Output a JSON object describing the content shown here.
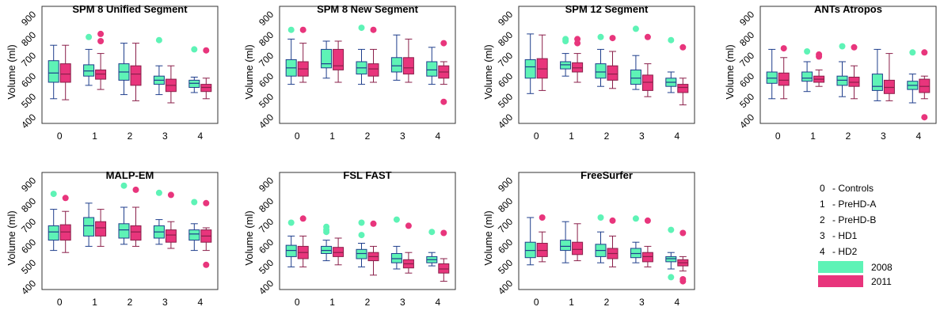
{
  "chart_data": [
    {
      "type": "box",
      "title": "SPM 8 Unified Segment",
      "ylabel": "Volume (ml)",
      "ylim": [
        400,
        900
      ],
      "yticks": [
        "400",
        "500",
        "600",
        "700",
        "800",
        "900"
      ],
      "categories": [
        "0",
        "1",
        "2",
        "3",
        "4"
      ],
      "series": [
        {
          "name": "2008",
          "boxes": [
            {
              "min": 520,
              "q1": 600,
              "median": 645,
              "q3": 705,
              "max": 780,
              "outliers": []
            },
            {
              "min": 585,
              "q1": 630,
              "median": 655,
              "q3": 685,
              "max": 760,
              "outliers": [
                820
              ]
            },
            {
              "min": 540,
              "q1": 610,
              "median": 650,
              "q3": 690,
              "max": 790,
              "outliers": []
            },
            {
              "min": 540,
              "q1": 590,
              "median": 610,
              "q3": 630,
              "max": 680,
              "outliers": [
                805
              ]
            },
            {
              "min": 550,
              "q1": 575,
              "median": 595,
              "q3": 610,
              "max": 625,
              "outliers": [
                760
              ]
            }
          ]
        },
        {
          "name": "2011",
          "boxes": [
            {
              "min": 515,
              "q1": 600,
              "median": 640,
              "q3": 690,
              "max": 780,
              "outliers": []
            },
            {
              "min": 565,
              "q1": 615,
              "median": 640,
              "q3": 660,
              "max": 740,
              "outliers": [
                835,
                800
              ]
            },
            {
              "min": 510,
              "q1": 585,
              "median": 640,
              "q3": 680,
              "max": 790,
              "outliers": []
            },
            {
              "min": 500,
              "q1": 555,
              "median": 585,
              "q3": 615,
              "max": 680,
              "outliers": []
            },
            {
              "min": 520,
              "q1": 555,
              "median": 575,
              "q3": 590,
              "max": 620,
              "outliers": [
                755
              ]
            }
          ]
        }
      ]
    },
    {
      "type": "box",
      "title": "SPM 8 New Segment",
      "ylabel": "Volume (ml)",
      "ylim": [
        400,
        900
      ],
      "yticks": [
        "400",
        "500",
        "600",
        "700",
        "800",
        "900"
      ],
      "categories": [
        "0",
        "1",
        "2",
        "3",
        "4"
      ],
      "series": [
        {
          "name": "2008",
          "boxes": [
            {
              "min": 590,
              "q1": 630,
              "median": 670,
              "q3": 710,
              "max": 810,
              "outliers": [
                855
              ]
            },
            {
              "min": 620,
              "q1": 670,
              "median": 690,
              "q3": 760,
              "max": 800,
              "outliers": []
            },
            {
              "min": 590,
              "q1": 640,
              "median": 670,
              "q3": 700,
              "max": 760,
              "outliers": [
                865
              ]
            },
            {
              "min": 610,
              "q1": 650,
              "median": 680,
              "q3": 720,
              "max": 830,
              "outliers": []
            },
            {
              "min": 590,
              "q1": 630,
              "median": 660,
              "q3": 700,
              "max": 770,
              "outliers": []
            }
          ]
        },
        {
          "name": "2011",
          "boxes": [
            {
              "min": 600,
              "q1": 630,
              "median": 665,
              "q3": 700,
              "max": 790,
              "outliers": [
                855
              ]
            },
            {
              "min": 600,
              "q1": 660,
              "median": 680,
              "q3": 760,
              "max": 800,
              "outliers": []
            },
            {
              "min": 600,
              "q1": 630,
              "median": 665,
              "q3": 690,
              "max": 760,
              "outliers": [
                855
              ]
            },
            {
              "min": 600,
              "q1": 640,
              "median": 670,
              "q3": 720,
              "max": 810,
              "outliers": []
            },
            {
              "min": 590,
              "q1": 620,
              "median": 650,
              "q3": 680,
              "max": 700,
              "outliers": [
                790,
                505
              ]
            }
          ]
        }
      ]
    },
    {
      "type": "box",
      "title": "SPM 12 Segment",
      "ylabel": "Volume (ml)",
      "ylim": [
        400,
        900
      ],
      "yticks": [
        "400",
        "500",
        "600",
        "700",
        "800",
        "900"
      ],
      "categories": [
        "0",
        "1",
        "2",
        "3",
        "4"
      ],
      "series": [
        {
          "name": "2008",
          "boxes": [
            {
              "min": 545,
              "q1": 620,
              "median": 675,
              "q3": 710,
              "max": 835,
              "outliers": []
            },
            {
              "min": 630,
              "q1": 665,
              "median": 685,
              "q3": 700,
              "max": 740,
              "outliers": [
                810,
                800
              ]
            },
            {
              "min": 580,
              "q1": 620,
              "median": 650,
              "q3": 690,
              "max": 760,
              "outliers": [
                820
              ]
            },
            {
              "min": 565,
              "q1": 590,
              "median": 620,
              "q3": 660,
              "max": 730,
              "outliers": [
                860
              ]
            },
            {
              "min": 550,
              "q1": 580,
              "median": 600,
              "q3": 620,
              "max": 650,
              "outliers": [
                805
              ]
            }
          ]
        },
        {
          "name": "2011",
          "boxes": [
            {
              "min": 560,
              "q1": 620,
              "median": 665,
              "q3": 715,
              "max": 830,
              "outliers": []
            },
            {
              "min": 600,
              "q1": 650,
              "median": 670,
              "q3": 695,
              "max": 740,
              "outliers": [
                810,
                790
              ]
            },
            {
              "min": 570,
              "q1": 610,
              "median": 640,
              "q3": 680,
              "max": 750,
              "outliers": [
                815
              ]
            },
            {
              "min": 530,
              "q1": 560,
              "median": 600,
              "q3": 635,
              "max": 690,
              "outliers": [
                820
              ]
            },
            {
              "min": 490,
              "q1": 550,
              "median": 575,
              "q3": 590,
              "max": 620,
              "outliers": [
                770
              ]
            }
          ]
        }
      ]
    },
    {
      "type": "box",
      "title": "ANTs Atropos",
      "ylabel": "Volume (ml)",
      "ylim": [
        400,
        900
      ],
      "yticks": [
        "400",
        "500",
        "600",
        "700",
        "800",
        "900"
      ],
      "categories": [
        "0",
        "1",
        "2",
        "3",
        "4"
      ],
      "series": [
        {
          "name": "2008",
          "boxes": [
            {
              "min": 520,
              "q1": 595,
              "median": 620,
              "q3": 650,
              "max": 760,
              "outliers": []
            },
            {
              "min": 555,
              "q1": 605,
              "median": 620,
              "q3": 650,
              "max": 700,
              "outliers": [
                750
              ]
            },
            {
              "min": 530,
              "q1": 585,
              "median": 610,
              "q3": 630,
              "max": 700,
              "outliers": [
                775
              ]
            },
            {
              "min": 510,
              "q1": 560,
              "median": 580,
              "q3": 640,
              "max": 760,
              "outliers": []
            },
            {
              "min": 500,
              "q1": 565,
              "median": 585,
              "q3": 605,
              "max": 640,
              "outliers": [
                745
              ]
            }
          ]
        },
        {
          "name": "2011",
          "boxes": [
            {
              "min": 520,
              "q1": 585,
              "median": 610,
              "q3": 645,
              "max": 720,
              "outliers": [
                765
              ]
            },
            {
              "min": 580,
              "q1": 600,
              "median": 615,
              "q3": 630,
              "max": 660,
              "outliers": [
                735,
                725
              ]
            },
            {
              "min": 520,
              "q1": 580,
              "median": 600,
              "q3": 625,
              "max": 680,
              "outliers": [
                770
              ]
            },
            {
              "min": 510,
              "q1": 545,
              "median": 575,
              "q3": 610,
              "max": 740,
              "outliers": []
            },
            {
              "min": 520,
              "q1": 550,
              "median": 580,
              "q3": 615,
              "max": 630,
              "outliers": [
                745,
                430
              ]
            }
          ]
        }
      ]
    },
    {
      "type": "box",
      "title": "MALP-EM",
      "ylabel": "Volume (ml)",
      "ylim": [
        400,
        900
      ],
      "yticks": [
        "400",
        "500",
        "600",
        "700",
        "800",
        "900"
      ],
      "categories": [
        "0",
        "1",
        "2",
        "3",
        "4"
      ],
      "series": [
        {
          "name": "2008",
          "boxes": [
            {
              "min": 590,
              "q1": 640,
              "median": 680,
              "q3": 710,
              "max": 790,
              "outliers": [
                865
              ]
            },
            {
              "min": 610,
              "q1": 660,
              "median": 710,
              "q3": 750,
              "max": 820,
              "outliers": []
            },
            {
              "min": 620,
              "q1": 650,
              "median": 690,
              "q3": 720,
              "max": 800,
              "outliers": [
                905
              ]
            },
            {
              "min": 620,
              "q1": 650,
              "median": 680,
              "q3": 710,
              "max": 740,
              "outliers": [
                870
              ]
            },
            {
              "min": 590,
              "q1": 640,
              "median": 670,
              "q3": 690,
              "max": 720,
              "outliers": [
                825
              ]
            }
          ]
        },
        {
          "name": "2011",
          "boxes": [
            {
              "min": 580,
              "q1": 640,
              "median": 680,
              "q3": 715,
              "max": 780,
              "outliers": [
                845
              ]
            },
            {
              "min": 610,
              "q1": 660,
              "median": 700,
              "q3": 730,
              "max": 790,
              "outliers": []
            },
            {
              "min": 610,
              "q1": 640,
              "median": 680,
              "q3": 710,
              "max": 800,
              "outliers": [
                885
              ]
            },
            {
              "min": 600,
              "q1": 630,
              "median": 665,
              "q3": 690,
              "max": 730,
              "outliers": [
                860
              ]
            },
            {
              "min": 590,
              "q1": 630,
              "median": 660,
              "q3": 690,
              "max": 700,
              "outliers": [
                820,
                520
              ]
            }
          ]
        }
      ]
    },
    {
      "type": "box",
      "title": "FSL FAST",
      "ylabel": "Volume (ml)",
      "ylim": [
        400,
        900
      ],
      "yticks": [
        "400",
        "500",
        "600",
        "700",
        "800",
        "900"
      ],
      "categories": [
        "0",
        "1",
        "2",
        "3",
        "4"
      ],
      "series": [
        {
          "name": "2008",
          "boxes": [
            {
              "min": 510,
              "q1": 560,
              "median": 590,
              "q3": 615,
              "max": 660,
              "outliers": [
                725
              ]
            },
            {
              "min": 540,
              "q1": 575,
              "median": 590,
              "q3": 610,
              "max": 640,
              "outliers": [
                705,
                690,
                680
              ]
            },
            {
              "min": 510,
              "q1": 550,
              "median": 575,
              "q3": 595,
              "max": 625,
              "outliers": [
                725,
                665
              ]
            },
            {
              "min": 500,
              "q1": 530,
              "median": 550,
              "q3": 575,
              "max": 610,
              "outliers": [
                740
              ]
            },
            {
              "min": 515,
              "q1": 530,
              "median": 545,
              "q3": 560,
              "max": 580,
              "outliers": [
                680
              ]
            }
          ]
        },
        {
          "name": "2011",
          "boxes": [
            {
              "min": 510,
              "q1": 550,
              "median": 580,
              "q3": 610,
              "max": 660,
              "outliers": [
                745
              ]
            },
            {
              "min": 520,
              "q1": 560,
              "median": 580,
              "q3": 605,
              "max": 650,
              "outliers": []
            },
            {
              "min": 470,
              "q1": 540,
              "median": 560,
              "q3": 580,
              "max": 610,
              "outliers": [
                720
              ]
            },
            {
              "min": 480,
              "q1": 505,
              "median": 525,
              "q3": 545,
              "max": 580,
              "outliers": [
                710
              ]
            },
            {
              "min": 440,
              "q1": 480,
              "median": 500,
              "q3": 525,
              "max": 550,
              "outliers": [
                675
              ]
            }
          ]
        }
      ]
    },
    {
      "type": "box",
      "title": "FreeSurfer",
      "ylabel": "Volume (ml)",
      "ylim": [
        400,
        900
      ],
      "yticks": [
        "400",
        "500",
        "600",
        "700",
        "800",
        "900"
      ],
      "categories": [
        "0",
        "1",
        "2",
        "3",
        "4"
      ],
      "series": [
        {
          "name": "2008",
          "boxes": [
            {
              "min": 520,
              "q1": 555,
              "median": 590,
              "q3": 630,
              "max": 750,
              "outliers": []
            },
            {
              "min": 530,
              "q1": 590,
              "median": 610,
              "q3": 640,
              "max": 730,
              "outliers": []
            },
            {
              "min": 530,
              "q1": 560,
              "median": 590,
              "q3": 620,
              "max": 680,
              "outliers": [
                750
              ]
            },
            {
              "min": 530,
              "q1": 555,
              "median": 575,
              "q3": 600,
              "max": 630,
              "outliers": [
                745
              ]
            },
            {
              "min": 500,
              "q1": 535,
              "median": 550,
              "q3": 560,
              "max": 580,
              "outliers": [
                690,
                460
              ]
            }
          ]
        },
        {
          "name": "2011",
          "boxes": [
            {
              "min": 535,
              "q1": 560,
              "median": 590,
              "q3": 625,
              "max": 680,
              "outliers": [
                750
              ]
            },
            {
              "min": 540,
              "q1": 570,
              "median": 595,
              "q3": 630,
              "max": 720,
              "outliers": []
            },
            {
              "min": 510,
              "q1": 550,
              "median": 575,
              "q3": 600,
              "max": 660,
              "outliers": [
                735
              ]
            },
            {
              "min": 510,
              "q1": 535,
              "median": 560,
              "q3": 580,
              "max": 610,
              "outliers": [
                735
              ]
            },
            {
              "min": 490,
              "q1": 515,
              "median": 530,
              "q3": 545,
              "max": 560,
              "outliers": [
                675,
                450,
                440
              ]
            }
          ]
        }
      ]
    }
  ],
  "legend": {
    "groups": [
      {
        "code": "0",
        "label": "- Controls"
      },
      {
        "code": "1",
        "label": "- PreHD-A"
      },
      {
        "code": "2",
        "label": "- PreHD-B"
      },
      {
        "code": "3",
        "label": "- HD1"
      },
      {
        "code": "4",
        "label": "- HD2"
      }
    ],
    "years": [
      {
        "label": "2008",
        "color": "#5ef3b6"
      },
      {
        "label": "2011",
        "color": "#e8357c"
      }
    ]
  },
  "colors": {
    "box_2008": "#5ef3b6",
    "box_2011": "#e8357c",
    "whisker_2008": "#1f3e8c",
    "whisker_2011": "#8a1f4a",
    "outlier_2008": "#5ef3b6",
    "outlier_2011": "#e8357c"
  }
}
